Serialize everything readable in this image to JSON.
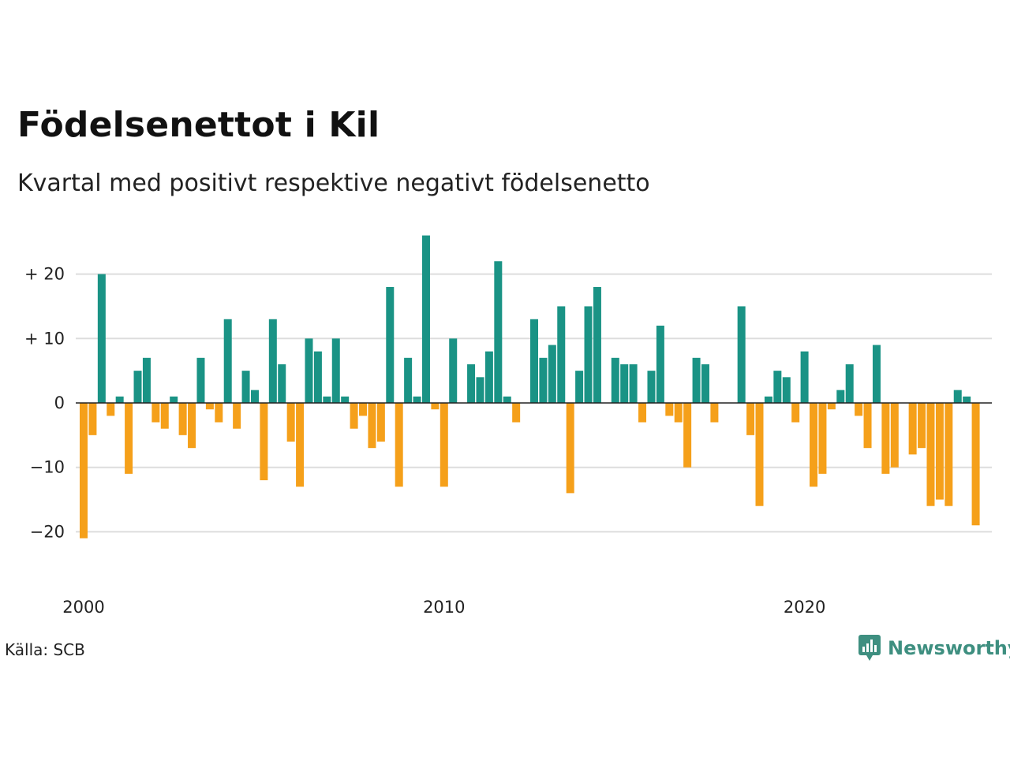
{
  "title": "Födelsenettot i Kil",
  "subtitle": "Kvartal med positivt respektive negativt födelsenetto",
  "source": "Källa: SCB",
  "brand": {
    "name": "Newsworthy",
    "icon": "bar-chart-speech-bubble-icon"
  },
  "colors": {
    "positive": "#1a9385",
    "negative": "#f5a01a",
    "grid": "#dddddd",
    "zero_line": "#222222"
  },
  "chart_data": {
    "type": "bar",
    "x_unit": "quarter",
    "start": "2000 Q1",
    "ylim": [
      -25,
      27
    ],
    "yticks": [
      -20,
      -10,
      0,
      10,
      20
    ],
    "ytick_labels": [
      "−20",
      "−10",
      "0",
      "+ 10",
      "+ 20"
    ],
    "xticks": [
      2000,
      2010,
      2020
    ],
    "xtick_labels": [
      "2000",
      "2010",
      "2020"
    ],
    "grid": true,
    "values": [
      -21,
      -5,
      20,
      -2,
      1,
      -11,
      5,
      7,
      -3,
      -4,
      1,
      -5,
      -7,
      7,
      -1,
      -3,
      13,
      -4,
      5,
      2,
      -12,
      13,
      6,
      -6,
      -13,
      10,
      8,
      1,
      10,
      1,
      -4,
      -2,
      -7,
      -6,
      18,
      -13,
      7,
      1,
      26,
      -1,
      -13,
      10,
      0,
      6,
      4,
      8,
      22,
      1,
      -3,
      0,
      13,
      7,
      9,
      15,
      -14,
      5,
      15,
      18,
      0,
      7,
      6,
      6,
      -3,
      5,
      12,
      -2,
      -3,
      -10,
      7,
      6,
      -3,
      0,
      0,
      15,
      -5,
      -16,
      1,
      5,
      4,
      -3,
      8,
      -13,
      -11,
      -1,
      2,
      6,
      -2,
      -7,
      9,
      -11,
      -10,
      0,
      -8,
      -7,
      -16,
      -15,
      -16,
      2,
      1,
      -19
    ]
  }
}
